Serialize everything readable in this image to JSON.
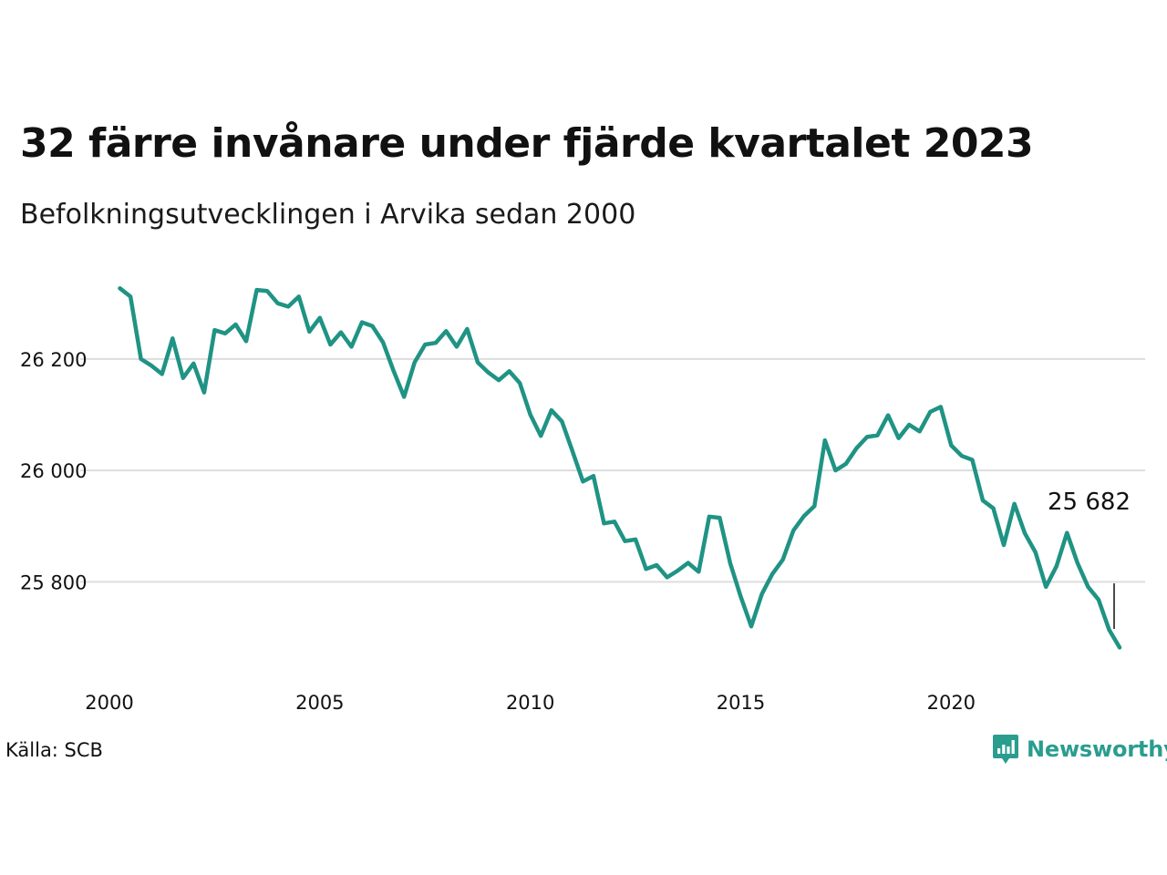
{
  "header": {
    "title": "32 färre invånare under fjärde kvartalet 2023",
    "subtitle": "Befolkningsutvecklingen i Arvika sedan 2000"
  },
  "footer": {
    "source": "Källa: SCB",
    "brand": "Newsworthy",
    "brand_icon": "newsworthy-logo-icon"
  },
  "colors": {
    "line": "#1f9384",
    "grid": "#dddddd",
    "brand": "#2a9d8f"
  },
  "chart_data": {
    "type": "line",
    "title": "32 färre invånare under fjärde kvartalet 2023",
    "subtitle": "Befolkningsutvecklingen i Arvika sedan 2000",
    "xlabel": "",
    "ylabel": "",
    "xlim": [
      2000,
      2024
    ],
    "ylim": [
      25650,
      26370
    ],
    "grid": true,
    "legend": "none",
    "x_ticks": [
      {
        "value": 2000,
        "label": "2000"
      },
      {
        "value": 2005,
        "label": "2005"
      },
      {
        "value": 2010,
        "label": "2010"
      },
      {
        "value": 2015,
        "label": "2015"
      },
      {
        "value": 2020,
        "label": "2020"
      }
    ],
    "y_ticks": [
      {
        "value": 25800,
        "label": "25 800"
      },
      {
        "value": 26000,
        "label": "26 000"
      },
      {
        "value": 26200,
        "label": "26 200"
      }
    ],
    "annotation": {
      "label": "25 682",
      "value": 25682
    },
    "series": [
      {
        "x_start": 2000.25,
        "x_step": 0.25,
        "values": [
          26327,
          26312,
          26200,
          26188,
          26173,
          26237,
          26166,
          26192,
          26140,
          26252,
          26246,
          26262,
          26232,
          26324,
          26322,
          26300,
          26294,
          26312,
          26249,
          26274,
          26226,
          26248,
          26222,
          26266,
          26259,
          26230,
          26179,
          26132,
          26194,
          26226,
          26229,
          26250,
          26222,
          26254,
          26194,
          26176,
          26162,
          26178,
          26157,
          26100,
          26062,
          26108,
          26088,
          26035,
          25980,
          25990,
          25905,
          25908,
          25873,
          25876,
          25823,
          25830,
          25808,
          25820,
          25834,
          25818,
          25917,
          25915,
          25833,
          25773,
          25720,
          25778,
          25814,
          25840,
          25892,
          25918,
          25936,
          26054,
          26000,
          26012,
          26040,
          26060,
          26063,
          26099,
          26058,
          26082,
          26070,
          26105,
          26114,
          26045,
          26026,
          26019,
          25946,
          25932,
          25866,
          25940,
          25887,
          25853,
          25791,
          25828,
          25888,
          25834,
          25791,
          25768,
          25714,
          25682
        ]
      }
    ]
  }
}
